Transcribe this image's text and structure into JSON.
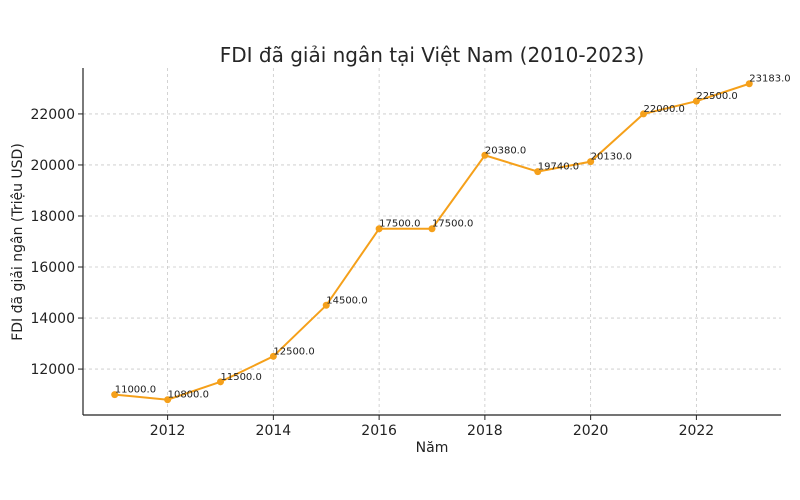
{
  "chart_data": {
    "type": "line",
    "title": "FDI đã giải ngân tại Việt Nam (2010-2023)",
    "xlabel": "Năm",
    "ylabel": "FDI đã giải ngân (Triệu USD)",
    "x": [
      2011,
      2012,
      2013,
      2014,
      2015,
      2016,
      2017,
      2018,
      2019,
      2020,
      2021,
      2022,
      2023
    ],
    "values": [
      11000,
      10800,
      11500,
      12500,
      14500,
      17500,
      17500,
      20380,
      19740,
      20130,
      22000,
      22500,
      23183
    ],
    "data_labels": [
      "11000.0",
      "10800.0",
      "11500.0",
      "12500.0",
      "14500.0",
      "17500.0",
      "17500.0",
      "20380.0",
      "19740.0",
      "20130.0",
      "22000.0",
      "22500.0",
      "23183.0"
    ],
    "xticks": [
      "2012",
      "2014",
      "2016",
      "2018",
      "2020",
      "2022"
    ],
    "yticks": [
      "12000",
      "14000",
      "16000",
      "18000",
      "20000",
      "22000"
    ],
    "xlim": [
      2010.4,
      2023.6
    ],
    "ylim": [
      10200,
      23800
    ],
    "grid": true,
    "color": "#f5a01a"
  }
}
